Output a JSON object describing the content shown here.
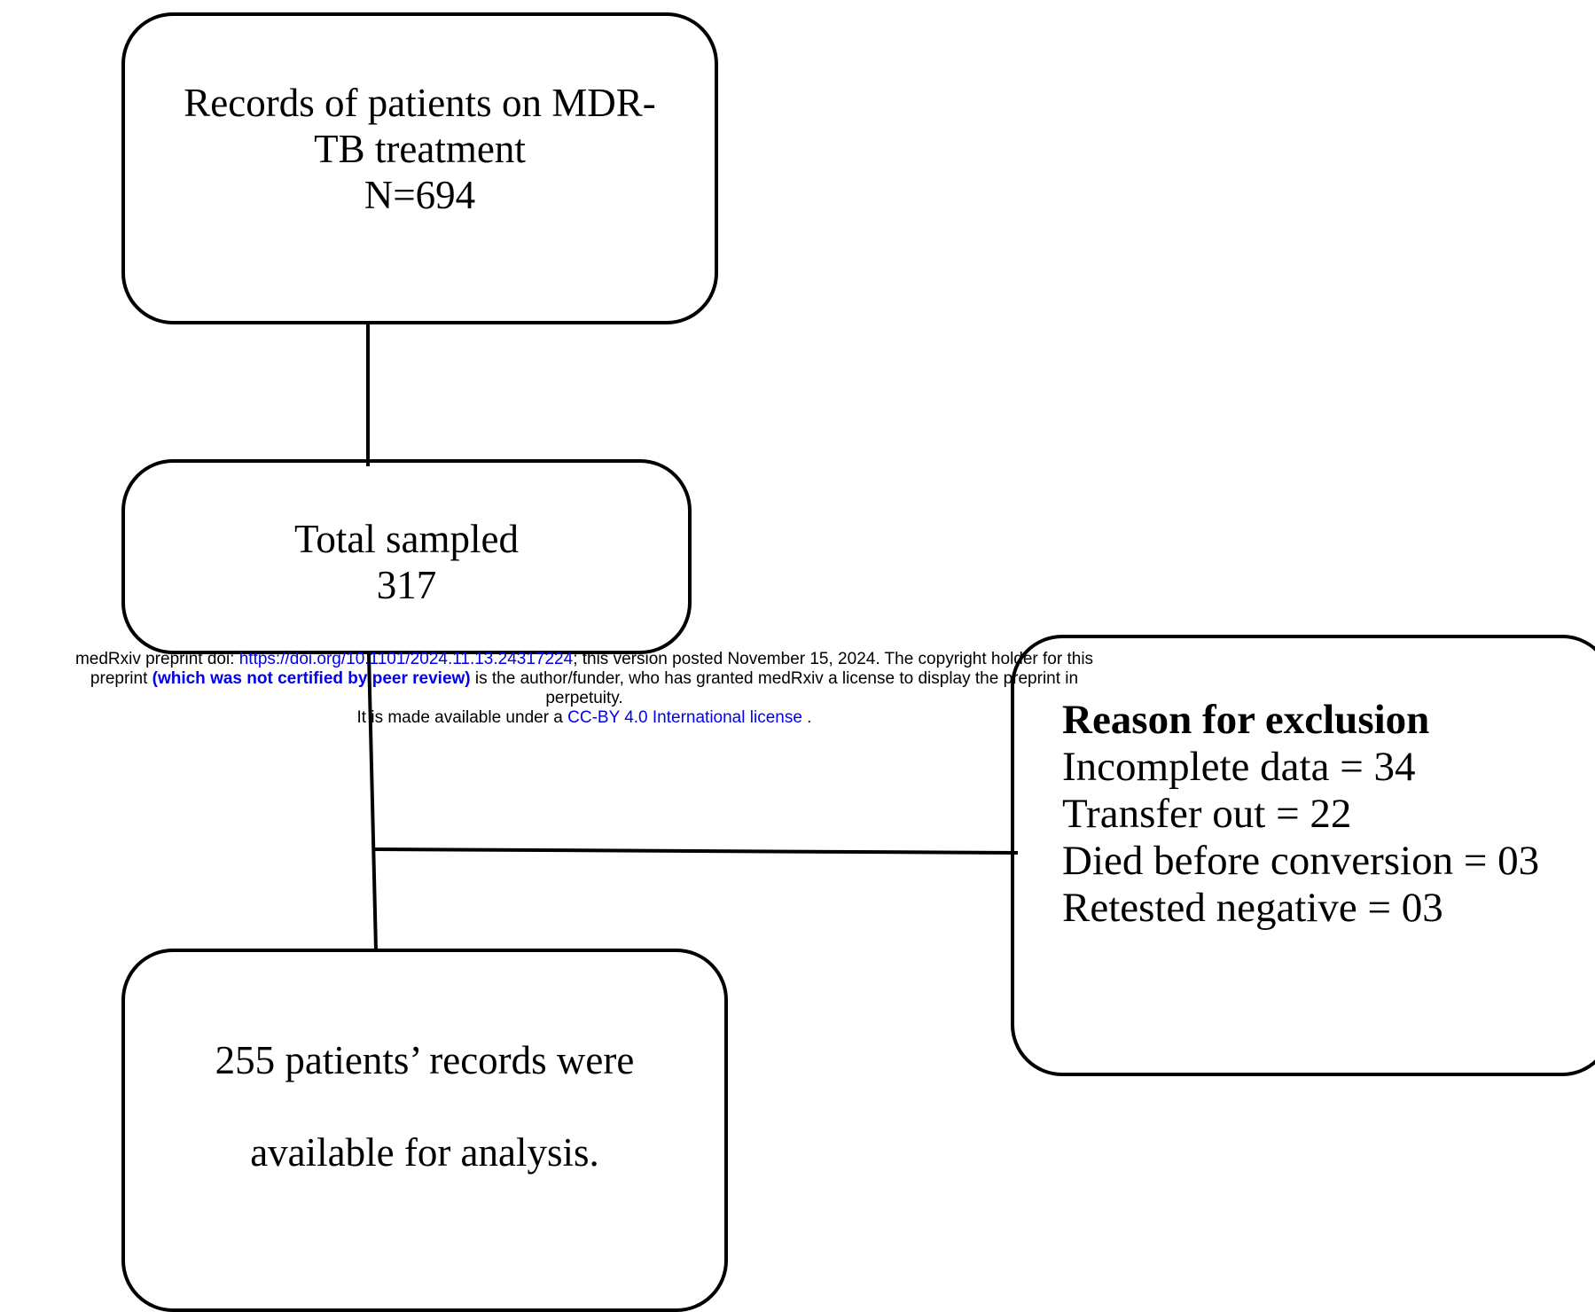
{
  "diagram": {
    "records_box": {
      "line1": "Records of patients on MDR-",
      "line2": "TB treatment",
      "line3": "N=694"
    },
    "sampled_box": {
      "line1": "Total sampled",
      "line2": "317"
    },
    "exclusion_box": {
      "title": "Reason for exclusion",
      "items": [
        "Incomplete data = 34",
        "Transfer out = 22",
        "Died before conversion = 03",
        "Retested negative = 03"
      ]
    },
    "analysis_box": {
      "line1": "255 patients’ records were",
      "line2": "available for analysis."
    }
  },
  "notice": {
    "l1_a": "medRxiv preprint doi: ",
    "l1_link": "https://doi.org/10.1101/2024.11.13.24317224",
    "l1_b": "; this version posted November 15, 2024. The copyright holder for this",
    "l2_a": "preprint ",
    "l2_bold": "(which was not certified by peer review)",
    "l2_b": " is the author/funder, who has granted medRxiv a license to display the preprint in",
    "l3": "perpetuity.",
    "l4_a": "It is made available under a ",
    "l4_link": "CC-BY 4.0 International license",
    "l4_b": " ."
  }
}
